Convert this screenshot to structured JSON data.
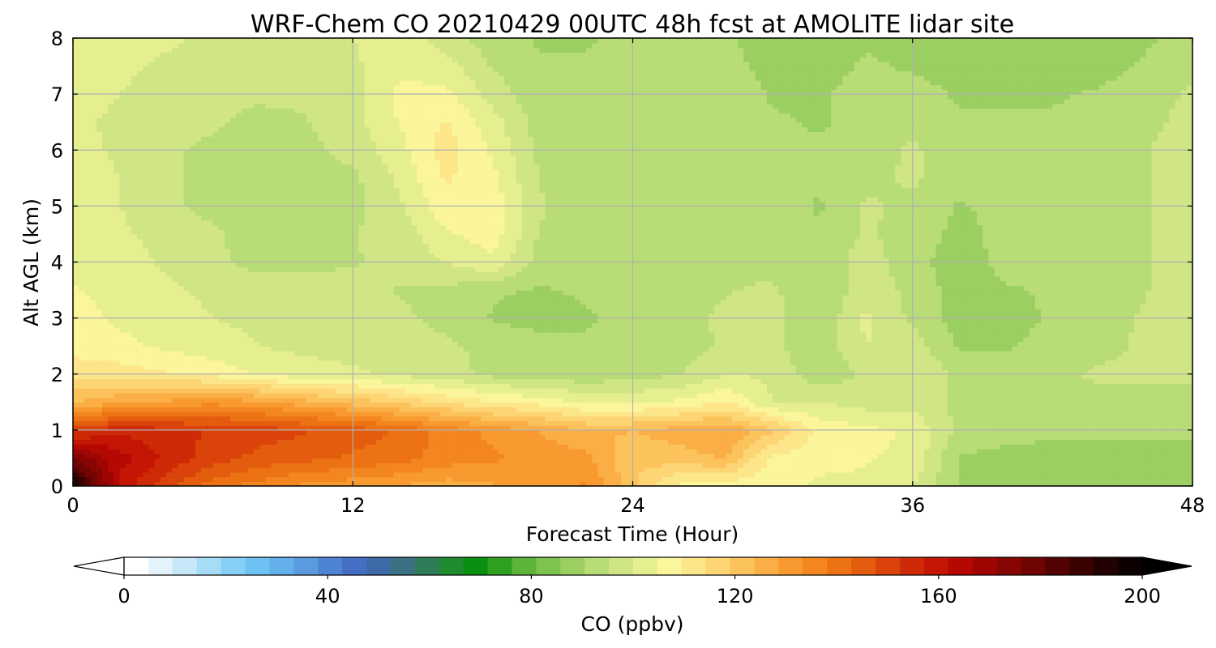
{
  "chart_data": {
    "type": "heatmap",
    "title": "WRF-Chem CO  20210429 00UTC 48h fcst at AMOLITE lidar site",
    "xlabel": "Forecast Time (Hour)",
    "ylabel": "Alt AGL (km)",
    "xlim": [
      0,
      48
    ],
    "ylim": [
      0,
      8
    ],
    "xticks": [
      0,
      12,
      24,
      36,
      48
    ],
    "yticks": [
      0,
      1,
      2,
      3,
      4,
      5,
      6,
      7,
      8
    ],
    "grid": true,
    "colorbar": {
      "label": "CO  (ppbv)",
      "min": 0,
      "max": 200,
      "ticks": [
        0,
        40,
        80,
        120,
        160,
        200
      ],
      "extend": "both",
      "colors": [
        "#ffffff",
        "#e4f3fb",
        "#c6e8f8",
        "#a6dcf6",
        "#86cff6",
        "#6ec2f3",
        "#63b0ea",
        "#5a9bdf",
        "#4f83d4",
        "#446fc4",
        "#3e6aa8",
        "#3b7182",
        "#2f7c58",
        "#1f8a30",
        "#0a9010",
        "#2fa020",
        "#5db43a",
        "#7ec24f",
        "#9ccf62",
        "#b8dc76",
        "#d0e585",
        "#e6ef8f",
        "#fbf59b",
        "#fde68a",
        "#fdd574",
        "#fcc35d",
        "#fbae45",
        "#f89a2f",
        "#f3861e",
        "#ec7214",
        "#e45c0e",
        "#da430a",
        "#cf2a07",
        "#c41505",
        "#b50803",
        "#9e0503",
        "#870502",
        "#700402",
        "#550302",
        "#3a0201",
        "#210101",
        "#0c0000"
      ],
      "under_color": "#ffffff",
      "over_color": "#000000"
    },
    "field": {
      "x": [
        0,
        2,
        4,
        6,
        8,
        10,
        12,
        14,
        16,
        18,
        20,
        22,
        24,
        26,
        28,
        30,
        32,
        34,
        36,
        38,
        40,
        42,
        44,
        46,
        48
      ],
      "y": [
        0,
        0.5,
        1,
        1.5,
        2,
        2.5,
        3,
        3.5,
        4,
        4.5,
        5,
        5.5,
        6,
        6.5,
        7,
        7.5,
        8
      ],
      "values": [
        [
          198,
          160,
          150,
          140,
          136,
          132,
          130,
          128,
          126,
          128,
          130,
          134,
          120,
          108,
          106,
          106,
          104,
          104,
          100,
          90,
          88,
          88,
          88,
          88,
          88
        ],
        [
          176,
          164,
          156,
          150,
          146,
          144,
          142,
          140,
          136,
          134,
          132,
          130,
          120,
          122,
          124,
          108,
          106,
          105,
          104,
          90,
          89,
          88,
          88,
          88,
          88
        ],
        [
          150,
          156,
          154,
          152,
          150,
          148,
          146,
          142,
          136,
          132,
          128,
          124,
          124,
          126,
          128,
          120,
          108,
          106,
          104,
          94,
          92,
          92,
          92,
          92,
          92
        ],
        [
          124,
          128,
          130,
          132,
          130,
          126,
          122,
          118,
          114,
          110,
          108,
          104,
          104,
          106,
          110,
          100,
          100,
          98,
          98,
          94,
          94,
          94,
          94,
          94,
          94
        ],
        [
          112,
          112,
          110,
          108,
          104,
          102,
          101,
          99,
          97,
          94,
          92,
          92,
          93,
          95,
          100,
          99,
          92,
          96,
          100,
          94,
          93,
          94,
          96,
          96,
          96
        ],
        [
          108,
          106,
          104,
          102,
          100,
          99,
          98,
          97,
          96,
          94,
          92,
          91,
          92,
          93,
          96,
          96,
          92,
          100,
          98,
          90,
          90,
          92,
          94,
          96,
          98
        ],
        [
          106,
          104,
          102,
          100,
          99,
          98,
          97,
          96,
          94,
          90,
          89,
          90,
          92,
          94,
          96,
          97,
          91,
          101,
          94,
          88,
          89,
          91,
          93,
          96,
          98
        ],
        [
          105,
          104,
          101,
          99,
          97,
          97,
          97,
          95,
          94,
          91,
          90,
          91,
          92,
          94,
          95,
          96,
          91,
          98,
          94,
          88,
          90,
          91,
          92,
          95,
          98
        ],
        [
          104,
          103,
          99,
          96,
          94,
          94,
          95,
          96,
          100,
          104,
          93,
          92,
          93,
          94,
          94,
          94,
          91,
          98,
          92,
          88,
          92,
          92,
          93,
          95,
          98
        ],
        [
          104,
          101,
          98,
          96,
          93,
          92,
          95,
          97,
          104,
          107,
          95,
          92,
          93,
          94,
          93,
          93,
          91,
          96,
          93,
          89,
          92,
          93,
          94,
          95,
          98
        ],
        [
          105,
          100,
          96,
          94,
          92,
          91,
          94,
          99,
          108,
          108,
          96,
          92,
          93,
          93,
          93,
          93,
          90,
          96,
          94,
          90,
          92,
          93,
          94,
          95,
          98
        ],
        [
          104,
          100,
          96,
          94,
          92,
          93,
          94,
          101,
          110,
          106,
          95,
          92,
          93,
          93,
          94,
          93,
          91,
          94,
          96,
          92,
          92,
          93,
          94,
          95,
          98
        ],
        [
          102,
          99,
          96,
          94,
          93,
          94,
          97,
          103,
          112,
          104,
          94,
          92,
          93,
          93,
          94,
          92,
          91,
          93,
          96,
          92,
          92,
          92,
          93,
          95,
          98
        ],
        [
          101,
          99,
          97,
          96,
          94,
          95,
          98,
          105,
          110,
          102,
          93,
          92,
          92,
          93,
          93,
          91,
          90,
          92,
          94,
          91,
          91,
          91,
          92,
          94,
          97
        ],
        [
          102,
          100,
          98,
          96,
          96,
          96,
          98,
          106,
          106,
          98,
          92,
          92,
          93,
          94,
          93,
          90,
          90,
          92,
          92,
          90,
          90,
          90,
          91,
          93,
          96
        ],
        [
          103,
          101,
          99,
          98,
          98,
          97,
          99,
          104,
          102,
          95,
          91,
          91,
          93,
          94,
          92,
          89,
          89,
          91,
          90,
          89,
          88,
          88,
          89,
          91,
          94
        ],
        [
          104,
          103,
          101,
          99,
          99,
          98,
          100,
          102,
          98,
          92,
          90,
          90,
          92,
          93,
          91,
          88,
          88,
          90,
          89,
          88,
          87,
          87,
          88,
          90,
          92
        ]
      ]
    }
  }
}
